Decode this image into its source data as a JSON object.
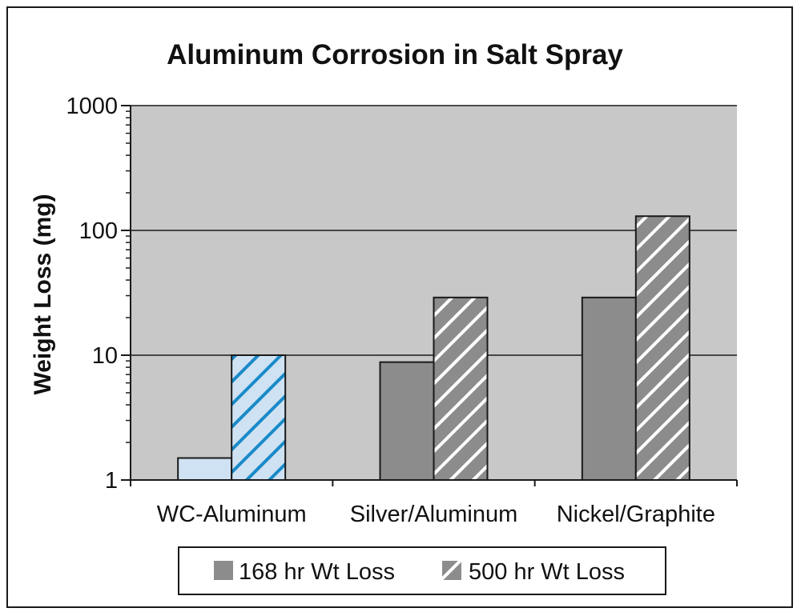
{
  "chart_data": {
    "type": "bar",
    "title": "Aluminum Corrosion in Salt Spray",
    "xlabel": "",
    "ylabel": "Weight Loss (mg)",
    "yscale": "log",
    "ylim": [
      1,
      1000
    ],
    "yticks": [
      {
        "value": 1,
        "label": "1"
      },
      {
        "value": 10,
        "label": "10"
      },
      {
        "value": 100,
        "label": "100"
      },
      {
        "value": 1000,
        "label": "1000"
      }
    ],
    "grid": true,
    "categories": [
      "WC-Aluminum",
      "Silver/Aluminum",
      "Nickel/Graphite"
    ],
    "series": [
      {
        "name": "168 hr Wt Loss",
        "values": [
          1.5,
          8.8,
          29
        ],
        "pattern": "solid"
      },
      {
        "name": "500 hr Wt Loss",
        "values": [
          10,
          29,
          130
        ],
        "pattern": "hatched"
      }
    ],
    "legend_position": "bottom",
    "colors": {
      "plot_background": "#c8c8c8",
      "bar_solid": "#8c8c8c",
      "bar_hatched_bg": "#8c8c8c",
      "bar_hatched_line": "#ffffff",
      "highlight_solid": "#cfe2f3",
      "highlight_hatch_line": "#1a8ac8",
      "gridline": "#1a1a1a"
    },
    "highlighted_category": "WC-Aluminum"
  }
}
